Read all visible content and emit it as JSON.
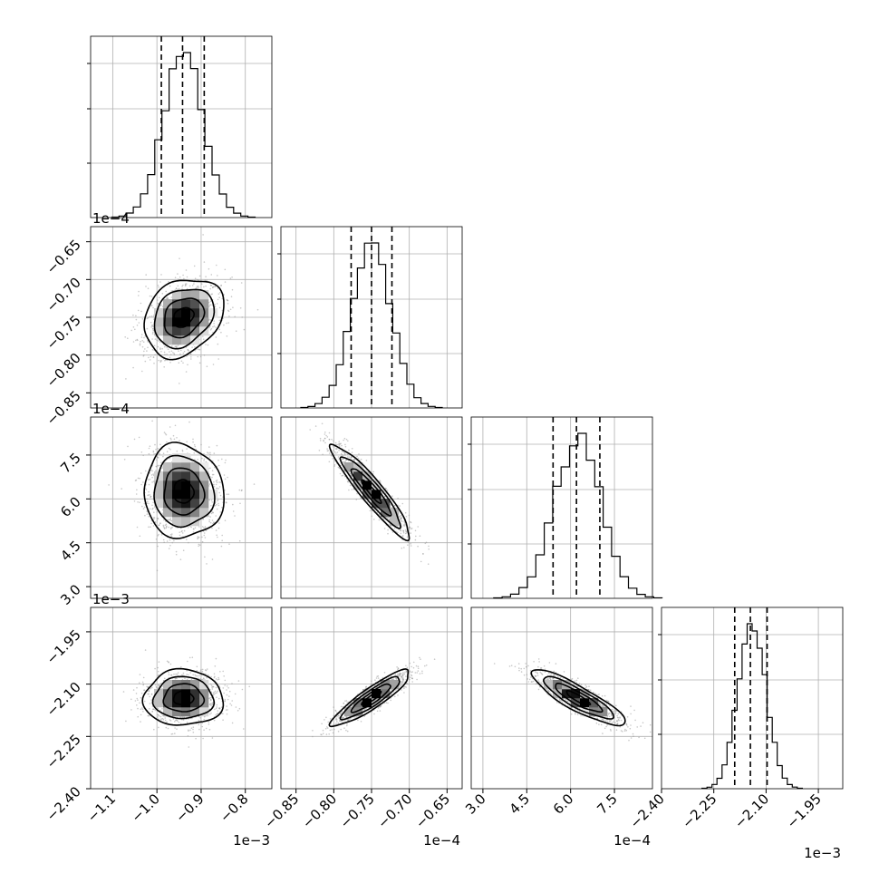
{
  "colors": {
    "ink": "#000000",
    "grid": "#b0b0b0",
    "scatter": "#9a9a9a",
    "background": "#ffffff"
  },
  "chart_data": {
    "type": "corner",
    "parameters": [
      {
        "range": [
          -1.15,
          -0.74
        ],
        "ticks": [
          -1.1,
          -1.0,
          -0.9,
          -0.8
        ],
        "tick_labels": [
          "−1.1",
          "−1.0",
          "−0.9",
          "−0.8"
        ],
        "offset_label": "1e−3",
        "mean": -0.94,
        "sd": 0.045,
        "quantiles": [
          -0.99,
          -0.942,
          -0.893
        ]
      },
      {
        "range": [
          -0.87,
          -0.63
        ],
        "ticks": [
          -0.85,
          -0.8,
          -0.75,
          -0.7,
          -0.65
        ],
        "tick_labels": [
          "−0.85",
          "−0.80",
          "−0.75",
          "−0.70",
          "−0.65"
        ],
        "offset_label": "1e−4",
        "mean": -0.75,
        "sd": 0.026,
        "quantiles": [
          -0.777,
          -0.75,
          -0.723
        ]
      },
      {
        "range": [
          2.6,
          8.8
        ],
        "ticks": [
          3.0,
          4.5,
          6.0,
          7.5
        ],
        "tick_labels": [
          "3.0",
          "4.5",
          "6.0",
          "7.5"
        ],
        "offset_label": "1e−4",
        "mean": 6.25,
        "sd": 0.8,
        "quantiles": [
          5.4,
          6.2,
          7.0
        ]
      },
      {
        "range": [
          -2.4,
          -1.88
        ],
        "ticks": [
          -2.4,
          -2.25,
          -2.1,
          -1.95
        ],
        "tick_labels": [
          "−2.40",
          "−2.25",
          "−2.10",
          "−1.95"
        ],
        "offset_label": "1e−3",
        "mean": -2.14,
        "sd": 0.04,
        "quantiles": [
          -2.19,
          -2.145,
          -2.097
        ]
      }
    ],
    "correlations": {
      "1-0": 0.25,
      "2-0": -0.05,
      "2-1": -0.93,
      "3-0": 0.0,
      "3-1": 0.9,
      "3-2": -0.87
    },
    "histogram_bins": 20,
    "contour_levels_sigma": [
      0.5,
      1.0,
      1.5,
      2.0
    ],
    "grid": true,
    "quantile_lines": "dashed"
  }
}
